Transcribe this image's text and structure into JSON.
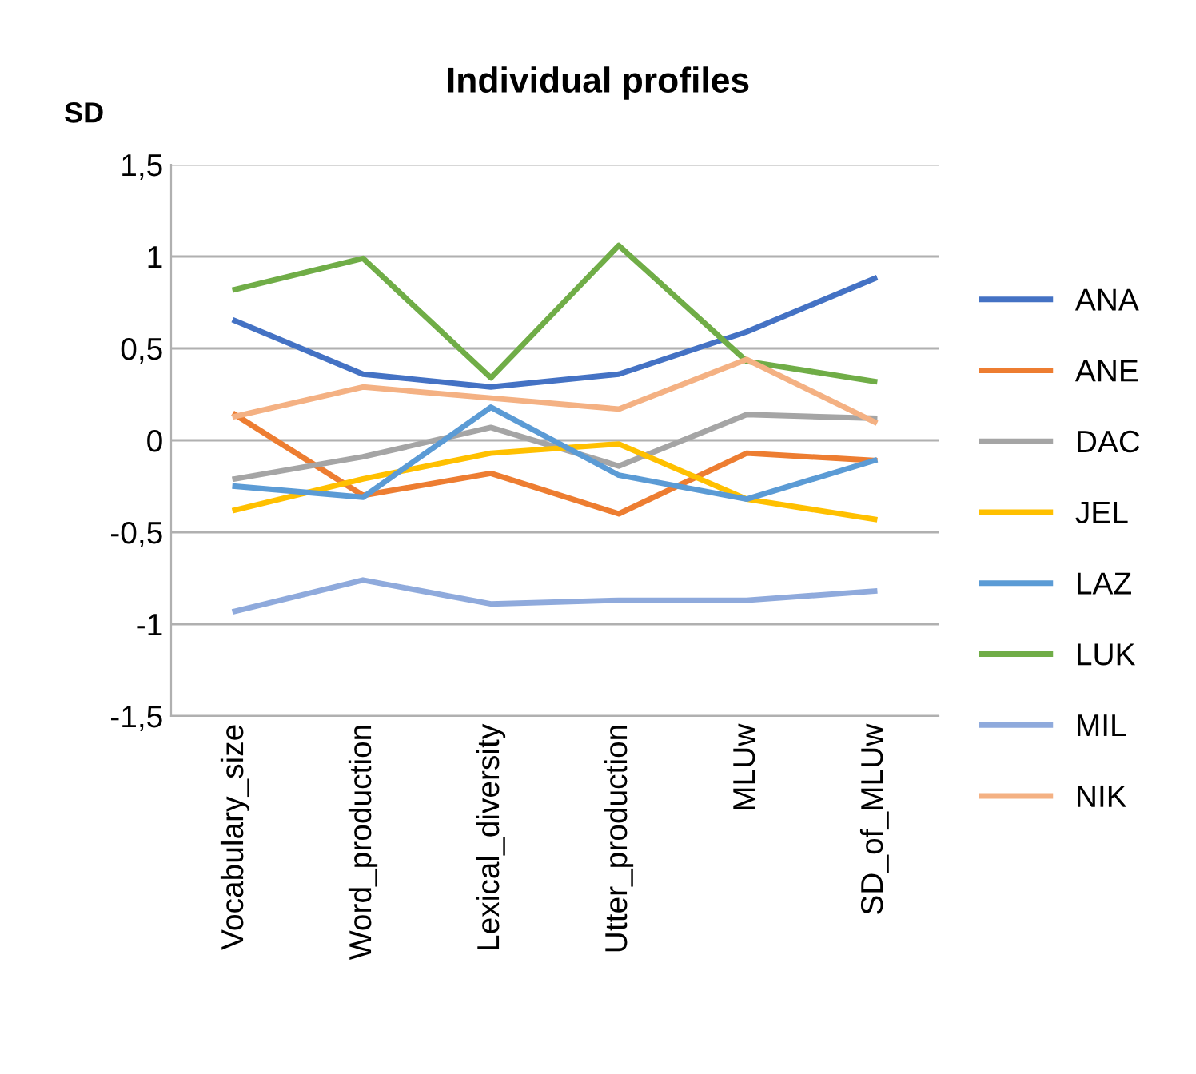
{
  "chart_data": {
    "type": "line",
    "title": "Individual profiles",
    "ylabel": "SD",
    "categories": [
      "Vocabulary_size",
      "Word_production",
      "Lexical_diversity",
      "Utter_production",
      "MLUw",
      "SD_of_MLUw"
    ],
    "series": [
      {
        "name": "ANA",
        "color": "#4472c4",
        "values": [
          0.65,
          0.36,
          0.29,
          0.36,
          0.59,
          0.88
        ]
      },
      {
        "name": "ANE",
        "color": "#ed7d31",
        "values": [
          0.14,
          -0.3,
          -0.18,
          -0.4,
          -0.07,
          -0.11
        ]
      },
      {
        "name": "DAC",
        "color": "#a5a5a5",
        "values": [
          -0.21,
          -0.09,
          0.07,
          -0.14,
          0.14,
          0.12
        ]
      },
      {
        "name": "JEL",
        "color": "#ffc000",
        "values": [
          -0.38,
          -0.21,
          -0.07,
          -0.02,
          -0.32,
          -0.43
        ]
      },
      {
        "name": "LAZ",
        "color": "#5b9bd5",
        "values": [
          -0.25,
          -0.31,
          0.18,
          -0.19,
          -0.32,
          -0.11
        ]
      },
      {
        "name": "LUK",
        "color": "#70ad47",
        "values": [
          0.82,
          0.99,
          0.34,
          1.06,
          0.43,
          0.32
        ]
      },
      {
        "name": "MIL",
        "color": "#8faadc",
        "values": [
          -0.93,
          -0.76,
          -0.89,
          -0.87,
          -0.87,
          -0.82
        ]
      },
      {
        "name": "NIK",
        "color": "#f4b183",
        "values": [
          0.13,
          0.29,
          0.23,
          0.17,
          0.44,
          0.1
        ]
      }
    ],
    "ylim": [
      -1.5,
      1.5
    ],
    "yticks": [
      {
        "value": 1.5,
        "label": "1,5"
      },
      1,
      {
        "value": 0.5,
        "label": "0,5"
      },
      0,
      {
        "value": -0.5,
        "label": "-0,5"
      },
      -1,
      {
        "value": -1.5,
        "label": "-1,5"
      }
    ],
    "grid": "y",
    "legend": "right",
    "marker": "none",
    "line_style": "solid"
  }
}
